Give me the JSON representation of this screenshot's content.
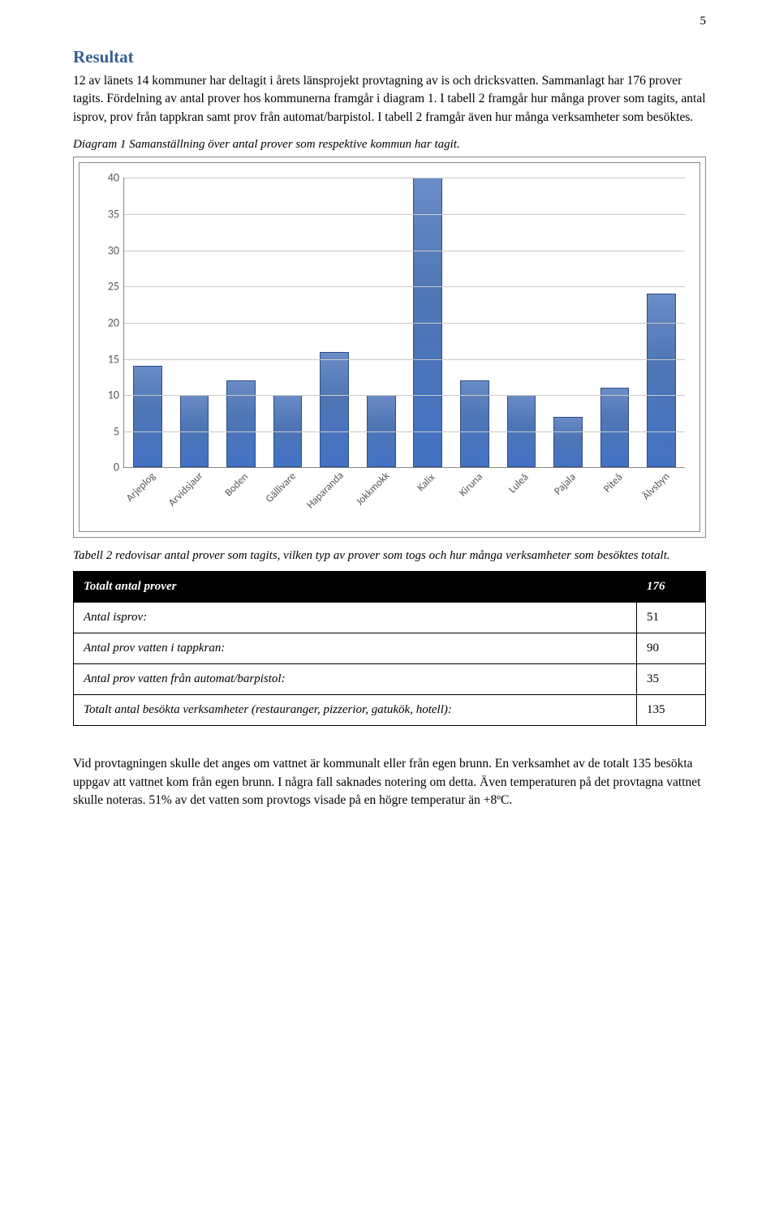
{
  "page_number": "5",
  "heading": "Resultat",
  "intro_paragraph": "12 av länets 14 kommuner har deltagit i årets länsprojekt provtagning av is och dricksvatten. Sammanlagt har 176 prover tagits. Fördelning av antal prover hos kommunerna framgår i diagram 1. I tabell 2 framgår hur många prover som tagits, antal isprov, prov från tappkran samt prov från automat/barpistol. I tabell 2 framgår även hur många verksamheter som besöktes.",
  "diagram_caption": "Diagram 1 Samanställning över antal prover som respektive kommun har tagit.",
  "chart": {
    "type": "bar",
    "categories": [
      "Arjeplog",
      "Arvidsjaur",
      "Boden",
      "Gällivare",
      "Haparanda",
      "Jokkmokk",
      "Kalix",
      "Kiruna",
      "Luleå",
      "Pajala",
      "Piteå",
      "Älvsbyn"
    ],
    "values": [
      14,
      10,
      12,
      10,
      16,
      10,
      40,
      12,
      10,
      7,
      11,
      24
    ],
    "bar_color": "#4472c4",
    "bar_border_color": "#2d4e86",
    "grid_color": "#c9c9c9",
    "axis_color": "#888888",
    "label_color": "#595959",
    "background_color": "#ffffff",
    "ylim": [
      0,
      40
    ],
    "yticks": [
      0,
      5,
      10,
      15,
      20,
      25,
      30,
      35,
      40
    ],
    "label_fontsize": 13,
    "tick_fontsize": 14,
    "bar_width_ratio": 0.62,
    "x_label_rotation_deg": -45
  },
  "table_caption": "Tabell 2 redovisar antal prover som tagits, vilken typ av prover som togs och hur många verksamheter som besöktes totalt.",
  "table": {
    "header_label": "Totalt antal prover",
    "header_value": "176",
    "rows": [
      {
        "label": "Antal isprov:",
        "value": "51"
      },
      {
        "label": "Antal prov vatten i tappkran:",
        "value": "90"
      },
      {
        "label": "Antal prov vatten från automat/barpistol:",
        "value": "35"
      },
      {
        "label": "Totalt antal besökta verksamheter (restauranger, pizzerior, gatukök, hotell):",
        "value": "135"
      }
    ],
    "header_bg": "#000000",
    "header_fg": "#ffffff",
    "border_color": "#000000"
  },
  "closing_paragraph": "Vid provtagningen skulle det anges om vattnet är kommunalt eller från egen brunn. En verksamhet av de totalt 135 besökta uppgav att vattnet kom från egen brunn. I några fall saknades notering om detta. Även temperaturen på det provtagna vattnet skulle noteras. 51% av det vatten som provtogs visade på en högre temperatur än +8ºC."
}
